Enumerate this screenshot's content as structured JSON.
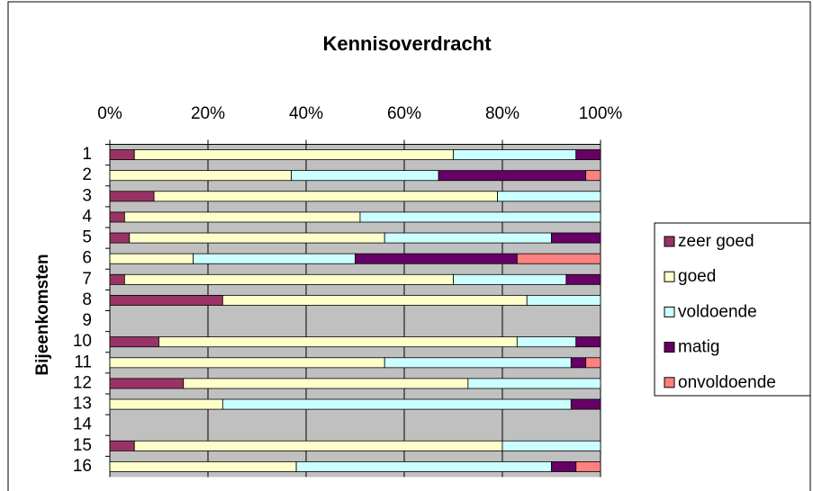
{
  "chart_data": {
    "type": "stacked_barh",
    "title": "Kennisoverdracht",
    "y_label": "Bijeenkomsten",
    "categories": [
      "1",
      "2",
      "3",
      "4",
      "5",
      "6",
      "7",
      "8",
      "9",
      "10",
      "11",
      "12",
      "13",
      "14",
      "15",
      "16"
    ],
    "series": [
      {
        "name": "zeer goed",
        "color": "#993366",
        "values": [
          5,
          0,
          9,
          3,
          4,
          0,
          3,
          23,
          null,
          10,
          0,
          15,
          0,
          null,
          5,
          0
        ]
      },
      {
        "name": "goed",
        "color": "#ffffcc",
        "values": [
          65,
          37,
          70,
          48,
          52,
          17,
          67,
          62,
          null,
          73,
          56,
          58,
          23,
          null,
          75,
          38
        ]
      },
      {
        "name": "voldoende",
        "color": "#ccffff",
        "values": [
          25,
          30,
          21,
          49,
          34,
          33,
          23,
          15,
          null,
          12,
          38,
          27,
          71,
          null,
          20,
          52
        ]
      },
      {
        "name": "matig",
        "color": "#660066",
        "values": [
          5,
          30,
          0,
          0,
          10,
          33,
          7,
          0,
          null,
          5,
          3,
          0,
          6,
          null,
          0,
          5
        ]
      },
      {
        "name": "onvoldoende",
        "color": "#ff8080",
        "values": [
          0,
          3,
          0,
          0,
          0,
          17,
          0,
          0,
          null,
          0,
          3,
          0,
          0,
          null,
          0,
          5
        ]
      }
    ],
    "xlim": [
      0,
      100
    ],
    "xticks": [
      {
        "value": 0,
        "label": "0%"
      },
      {
        "value": 20,
        "label": "20%"
      },
      {
        "value": 40,
        "label": "40%"
      },
      {
        "value": 60,
        "label": "60%"
      },
      {
        "value": 80,
        "label": "80%"
      },
      {
        "value": 100,
        "label": "100%"
      }
    ],
    "grid": true,
    "legend": "right"
  }
}
